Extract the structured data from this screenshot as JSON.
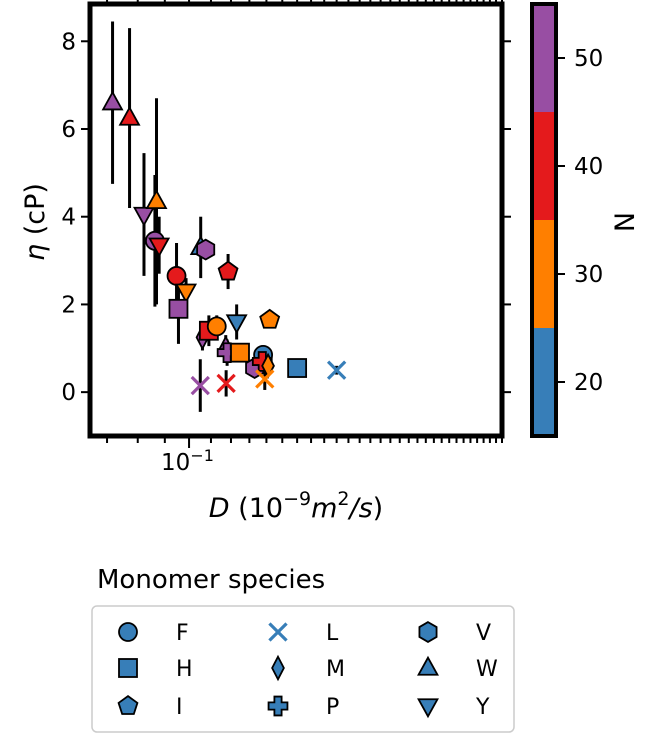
{
  "chart_data": {
    "type": "scatter",
    "title": "",
    "xlabel": {
      "main": "D (10",
      "exp": "−9",
      "unit_m": "m",
      "unit_exp": "2",
      "unit_tail": "/s)"
    },
    "ylabel": {
      "sym": "η",
      "unit": "(cP)"
    },
    "x_scale": "log",
    "xlim": [
      0.065,
      0.39
    ],
    "ylim": [
      -1,
      8.85
    ],
    "y_ticks": [
      0,
      2,
      4,
      6,
      8
    ],
    "y_tick_labels": [
      "0",
      "2",
      "4",
      "6",
      "8"
    ],
    "x_tick_label": {
      "base": "10",
      "exp": "−1"
    },
    "colorbar": {
      "label": "N",
      "range": [
        15,
        55
      ],
      "ticks": [
        20,
        30,
        40,
        50
      ],
      "tick_labels": [
        "20",
        "30",
        "40",
        "50"
      ],
      "bins": [
        {
          "from": 15,
          "to": 25,
          "color": "#377eb8"
        },
        {
          "from": 25,
          "to": 35,
          "color": "#ff7f00"
        },
        {
          "from": 35,
          "to": 45,
          "color": "#e41a1c"
        },
        {
          "from": 45,
          "to": 55,
          "color": "#984ea3"
        }
      ]
    },
    "legend": {
      "title": "Monomer species",
      "position": "below",
      "entries": [
        {
          "label": "F",
          "marker": "circle"
        },
        {
          "label": "H",
          "marker": "square"
        },
        {
          "label": "I",
          "marker": "pentagon"
        },
        {
          "label": "L",
          "marker": "x"
        },
        {
          "label": "M",
          "marker": "thin-diamond"
        },
        {
          "label": "P",
          "marker": "plus"
        },
        {
          "label": "V",
          "marker": "hexagon"
        },
        {
          "label": "W",
          "marker": "triangle-up"
        },
        {
          "label": "Y",
          "marker": "triangle-down"
        }
      ]
    },
    "points": [
      {
        "x": 0.0717,
        "y": 6.6,
        "yerr": 1.85,
        "N": 50,
        "marker": "triangle-up"
      },
      {
        "x": 0.0772,
        "y": 6.25,
        "yerr": 2.05,
        "N": 40,
        "marker": "triangle-up"
      },
      {
        "x": 0.0822,
        "y": 4.05,
        "yerr": 1.4,
        "N": 50,
        "marker": "triangle-down"
      },
      {
        "x": 0.0868,
        "y": 4.35,
        "yerr": 2.35,
        "N": 30,
        "marker": "triangle-up"
      },
      {
        "x": 0.0862,
        "y": 3.45,
        "yerr": 1.5,
        "N": 50,
        "marker": "circle"
      },
      {
        "x": 0.0878,
        "y": 3.35,
        "yerr": 0.65,
        "N": 40,
        "marker": "triangle-down"
      },
      {
        "x": 0.0947,
        "y": 2.65,
        "yerr": 0.75,
        "N": 40,
        "marker": "circle"
      },
      {
        "x": 0.0987,
        "y": 2.3,
        "yerr": 0.3,
        "N": 30,
        "marker": "triangle-down"
      },
      {
        "x": 0.0955,
        "y": 1.9,
        "yerr": 0.8,
        "N": 50,
        "marker": "square"
      },
      {
        "x": 0.1052,
        "y": 3.3,
        "yerr": 0.7,
        "N": 20,
        "marker": "triangle-up"
      },
      {
        "x": 0.1075,
        "y": 3.25,
        "yerr": 0.2,
        "N": 50,
        "marker": "hexagon"
      },
      {
        "x": 0.1185,
        "y": 2.75,
        "yerr": 0.4,
        "N": 40,
        "marker": "pentagon"
      },
      {
        "x": 0.123,
        "y": 1.6,
        "yerr": 0.4,
        "N": 20,
        "marker": "triangle-down"
      },
      {
        "x": 0.106,
        "y": 1.25,
        "yerr": 0.3,
        "N": 50,
        "marker": "thin-diamond"
      },
      {
        "x": 0.109,
        "y": 1.4,
        "yerr": 0.35,
        "N": 40,
        "marker": "square"
      },
      {
        "x": 0.1128,
        "y": 1.5,
        "yerr": 0.25,
        "N": 30,
        "marker": "circle"
      },
      {
        "x": 0.1173,
        "y": 1.0,
        "yerr": 0.3,
        "N": 50,
        "marker": "thin-diamond"
      },
      {
        "x": 0.118,
        "y": 0.9,
        "yerr": 0.3,
        "N": 50,
        "marker": "plus"
      },
      {
        "x": 0.1248,
        "y": 0.9,
        "yerr": 0.2,
        "N": 30,
        "marker": "square"
      },
      {
        "x": 0.105,
        "y": 0.15,
        "yerr": 0.6,
        "N": 50,
        "marker": "x"
      },
      {
        "x": 0.1175,
        "y": 0.2,
        "yerr": 0.3,
        "N": 40,
        "marker": "x"
      },
      {
        "x": 0.138,
        "y": 0.85,
        "yerr": 0.15,
        "N": 20,
        "marker": "circle"
      },
      {
        "x": 0.133,
        "y": 0.55,
        "yerr": 0.15,
        "N": 50,
        "marker": "hexagon"
      },
      {
        "x": 0.1375,
        "y": 0.7,
        "yerr": 0.2,
        "N": 40,
        "marker": "plus"
      },
      {
        "x": 0.141,
        "y": 0.6,
        "yerr": 0.15,
        "N": 30,
        "marker": "thin-diamond"
      },
      {
        "x": 0.139,
        "y": 0.3,
        "yerr": 0.25,
        "N": 30,
        "marker": "x"
      },
      {
        "x": 0.142,
        "y": 1.65,
        "yerr": 0.1,
        "N": 30,
        "marker": "pentagon"
      },
      {
        "x": 0.16,
        "y": 0.55,
        "yerr": 0.1,
        "N": 20,
        "marker": "square"
      },
      {
        "x": 0.19,
        "y": 0.5,
        "yerr": 0.1,
        "N": 20,
        "marker": "x"
      }
    ]
  },
  "legend_ui": {
    "title": "Monomer species",
    "labels": [
      "F",
      "H",
      "I",
      "L",
      "M",
      "P",
      "V",
      "W",
      "Y"
    ]
  }
}
